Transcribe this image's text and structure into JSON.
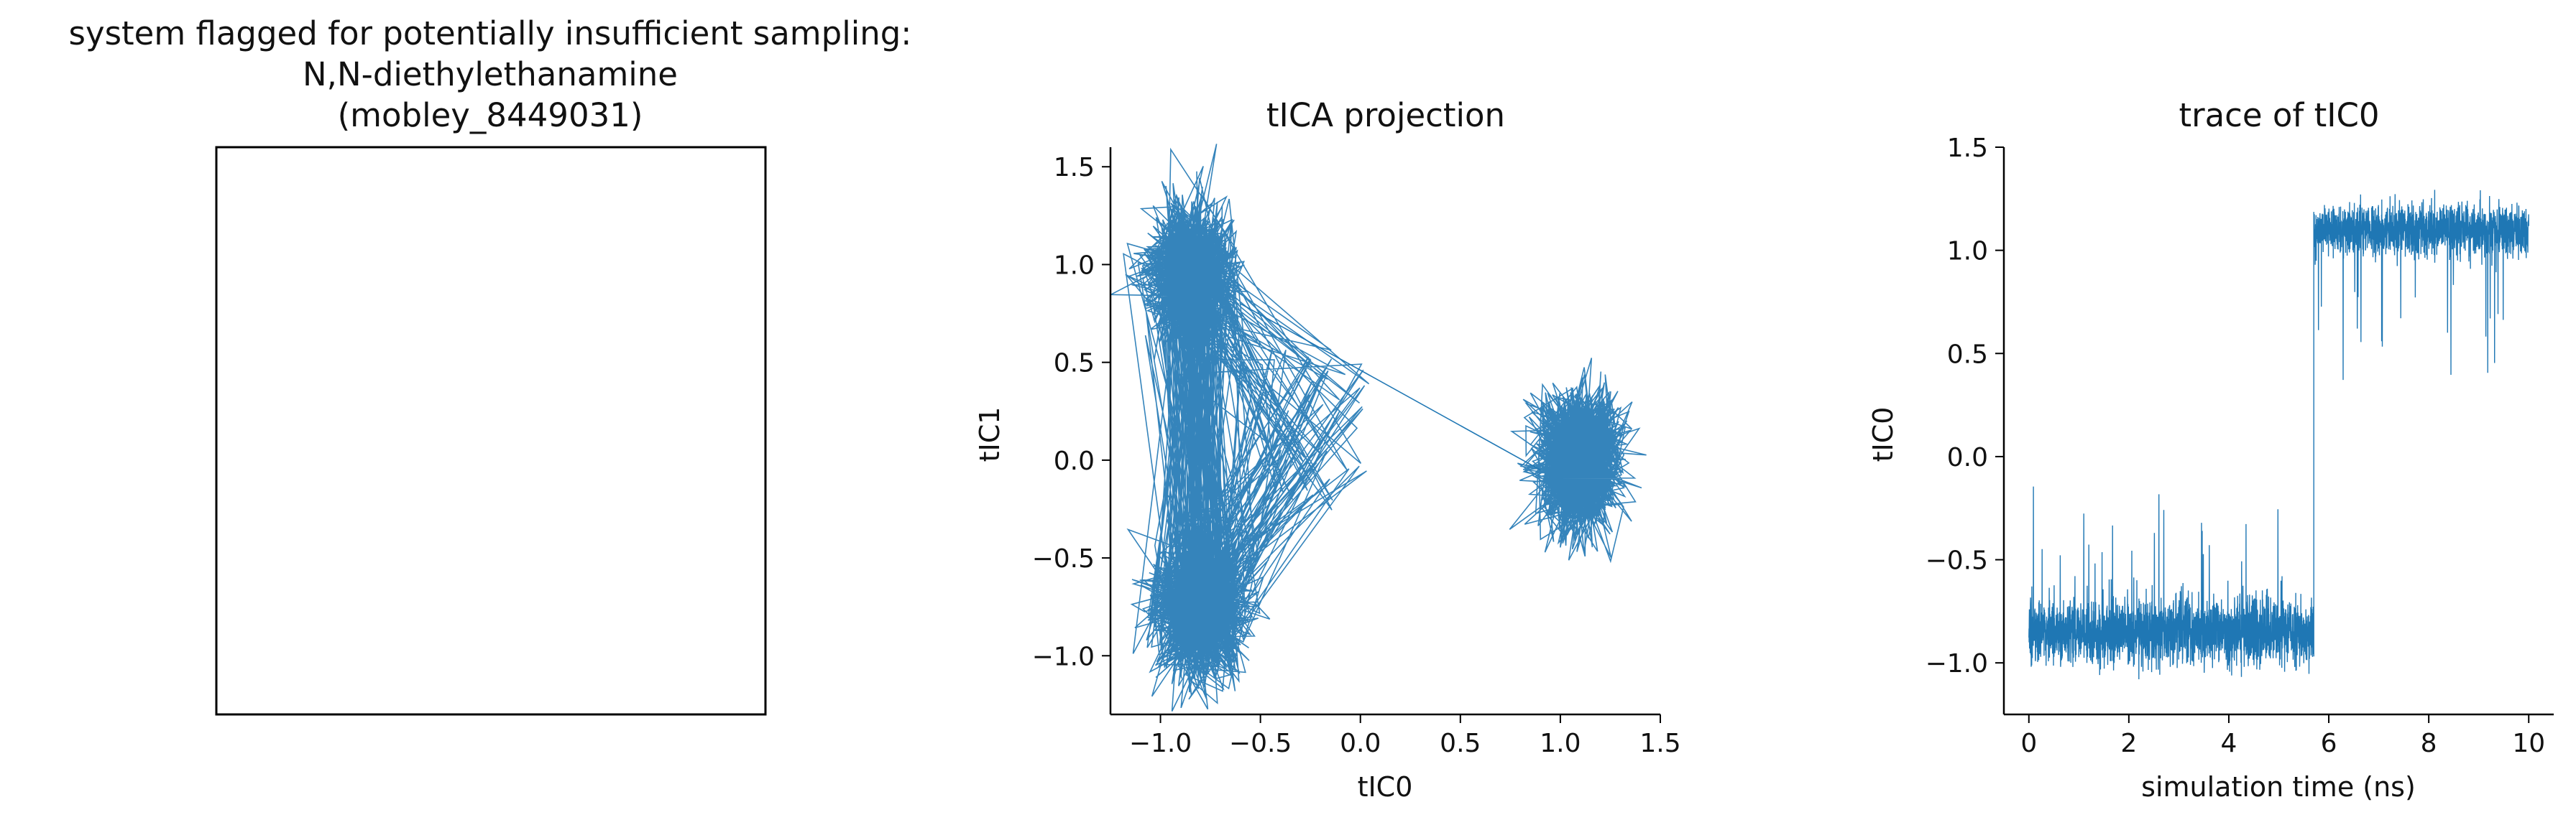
{
  "chart_data": [
    {
      "type": "image",
      "title_lines": [
        "system flagged for potentially insufficient sampling:",
        "N,N-diethylethanamine",
        "(mobley_8449031)"
      ],
      "content": "empty frame"
    },
    {
      "type": "line",
      "title": "tICA projection",
      "xlabel": "tIC0",
      "ylabel": "tIC1",
      "xlim": [
        -1.25,
        1.5
      ],
      "ylim": [
        -1.3,
        1.6
      ],
      "xticks": [
        -1.0,
        -0.5,
        0.0,
        0.5,
        1.0,
        1.5
      ],
      "yticks": [
        -1.0,
        -0.5,
        0.0,
        0.5,
        1.0,
        1.5
      ],
      "xtick_labels": [
        "−1.0",
        "−0.5",
        "0.0",
        "0.5",
        "1.0",
        "1.5"
      ],
      "ytick_labels": [
        "−1.0",
        "−0.5",
        "0.0",
        "0.5",
        "1.0",
        "1.5"
      ],
      "color": "#1f77b4",
      "clusters": [
        {
          "center": [
            -0.85,
            0.95
          ],
          "spread": [
            0.11,
            0.17
          ],
          "frac": 0.5
        },
        {
          "center": [
            -0.8,
            -0.75
          ],
          "spread": [
            0.11,
            0.17
          ],
          "frac": 0.5
        },
        {
          "center": [
            1.1,
            0.0
          ],
          "spread": [
            0.1,
            0.16
          ],
          "frac": 1.0
        }
      ],
      "transition": [
        [
          -0.6,
          0.8
        ],
        [
          0.9,
          -0.05
        ]
      ]
    },
    {
      "type": "line",
      "title": "trace of tIC0",
      "xlabel": "simulation time (ns)",
      "ylabel": "tIC0",
      "xlim": [
        -0.5,
        10.5
      ],
      "ylim": [
        -1.25,
        1.5
      ],
      "xticks": [
        0,
        2,
        4,
        6,
        8,
        10
      ],
      "yticks": [
        -1.0,
        -0.5,
        0.0,
        0.5,
        1.0,
        1.5
      ],
      "xtick_labels": [
        "0",
        "2",
        "4",
        "6",
        "8",
        "10"
      ],
      "ytick_labels": [
        "−1.0",
        "−0.5",
        "0.0",
        "0.5",
        "1.0",
        "1.5"
      ],
      "color": "#1f77b4",
      "segments": [
        {
          "x": [
            0,
            5.7
          ],
          "mean": -0.85,
          "spread": 0.08
        },
        {
          "x": [
            5.7,
            10
          ],
          "mean": 1.1,
          "spread": 0.06
        }
      ]
    }
  ]
}
